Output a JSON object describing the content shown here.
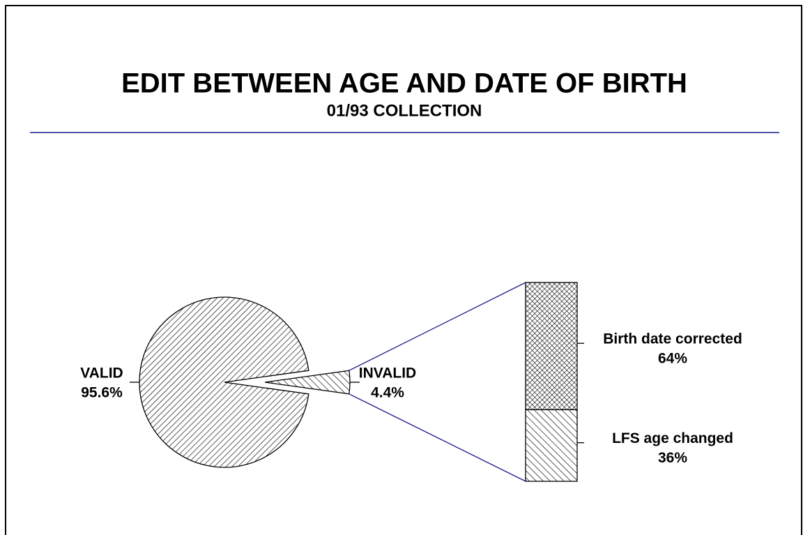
{
  "chart_data": [
    {
      "type": "pie",
      "title": "EDIT BETWEEN AGE AND DATE OF BIRTH",
      "subtitle": "01/93 COLLECTION",
      "categories": [
        "VALID",
        "INVALID"
      ],
      "values": [
        95.6,
        4.4
      ],
      "value_labels": [
        "95.6%",
        "4.4%"
      ]
    },
    {
      "type": "bar",
      "categories": [
        "Birth date corrected",
        "LFS age changed"
      ],
      "values": [
        64,
        36
      ],
      "value_labels": [
        "64%",
        "36%"
      ]
    }
  ]
}
